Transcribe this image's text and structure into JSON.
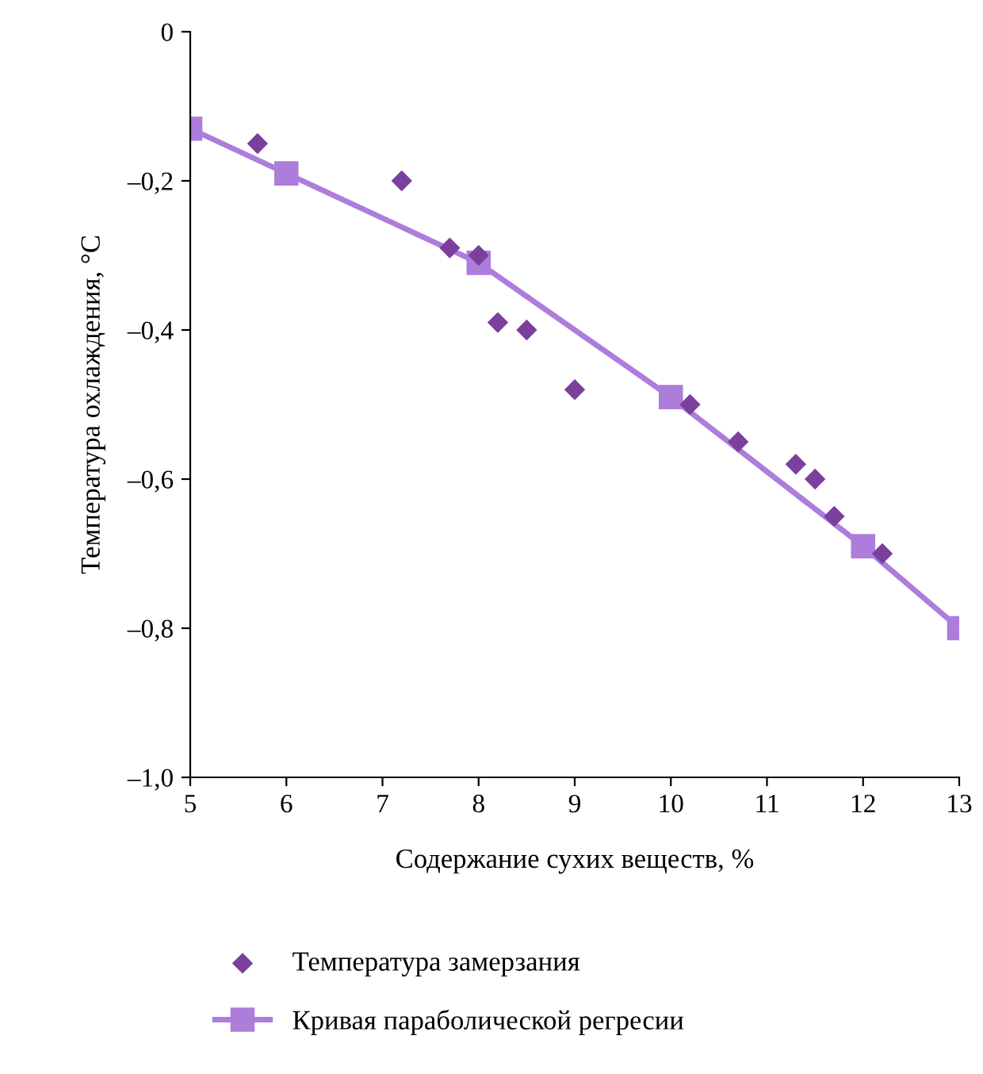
{
  "chart_data": {
    "type": "scatter",
    "xlabel": "Содержание сухих веществ, %",
    "ylabel": "Температура охлаждения, °С",
    "xlim": [
      5,
      13
    ],
    "xticks": [
      5,
      6,
      7,
      8,
      9,
      10,
      11,
      12,
      13
    ],
    "ylim": [
      -1.0,
      0
    ],
    "yticks": [
      {
        "value": -1.0,
        "label": "–1,0"
      },
      {
        "value": -0.8,
        "label": "–0,8"
      },
      {
        "value": -0.6,
        "label": "–0,6"
      },
      {
        "value": -0.4,
        "label": "–0,4"
      },
      {
        "value": -0.2,
        "label": "–0,2"
      },
      0
    ],
    "grid": false,
    "legend": "bottom",
    "series": [
      {
        "name": "Температура замерзания",
        "marker": "diamond",
        "color": "#7b3f9e",
        "x": [
          5.7,
          7.2,
          7.7,
          8.0,
          8.2,
          8.5,
          9.0,
          10.2,
          10.7,
          11.3,
          11.5,
          11.7,
          12.2
        ],
        "values": [
          -0.15,
          -0.2,
          -0.29,
          -0.3,
          -0.39,
          -0.4,
          -0.48,
          -0.5,
          -0.55,
          -0.58,
          -0.6,
          -0.65,
          -0.7
        ]
      },
      {
        "name": "Кривая параболической регресии",
        "type": "line",
        "marker": "square",
        "line_style": "solid",
        "color": "#ad7ddc",
        "x": [
          5,
          6,
          8,
          10,
          12,
          13
        ],
        "values": [
          -0.13,
          -0.19,
          -0.31,
          -0.49,
          -0.69,
          -0.8
        ]
      }
    ]
  }
}
